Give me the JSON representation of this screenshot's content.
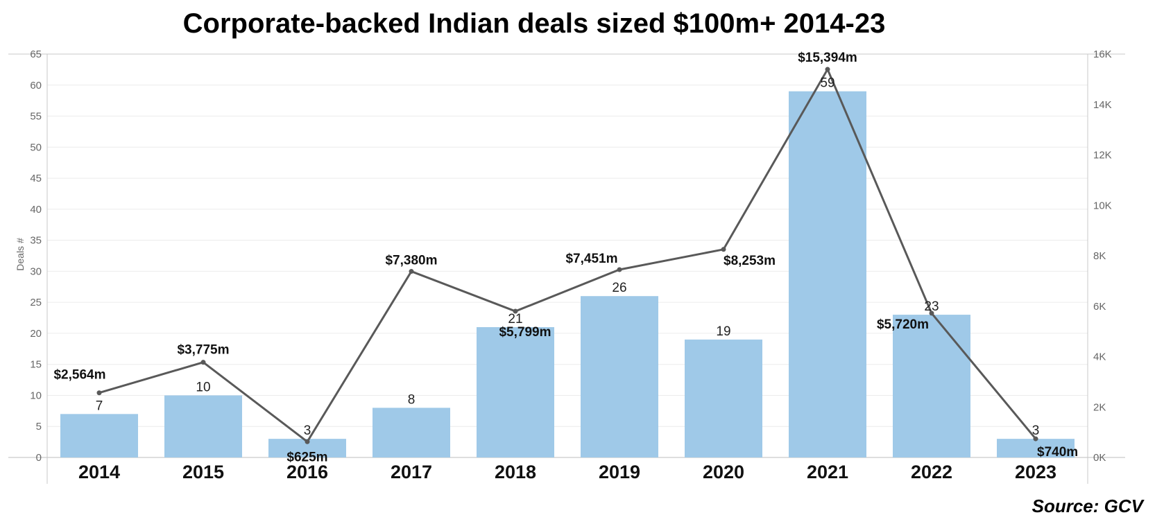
{
  "chart_data": {
    "type": "bar",
    "title": "Corporate-backed Indian deals sized $100m+ 2014-23",
    "ylabel": "Deals #",
    "categories": [
      "2014",
      "2015",
      "2016",
      "2017",
      "2018",
      "2019",
      "2020",
      "2021",
      "2022",
      "2023"
    ],
    "series": [
      {
        "type": "bar",
        "axis": "left",
        "values": [
          7,
          10,
          3,
          8,
          21,
          26,
          19,
          59,
          23,
          3
        ],
        "labels": [
          "7",
          "10",
          "3",
          "8",
          "21",
          "26",
          "19",
          "59",
          "23",
          "3"
        ],
        "color": "#9fc9e8"
      },
      {
        "type": "line",
        "axis": "right",
        "values": [
          2564,
          3775,
          625,
          7380,
          5799,
          7451,
          8253,
          15394,
          5720,
          740
        ],
        "labels": [
          "$2,564m",
          "$3,775m",
          "$625m",
          "$7,380m",
          "$5,799m",
          "$7,451m",
          "$8,253m",
          "$15,394m",
          "$5,720m",
          "$740m"
        ],
        "color": "#595959"
      }
    ],
    "y_left": {
      "lim": [
        0,
        65
      ],
      "ticks": [
        "0",
        "5",
        "10",
        "15",
        "20",
        "25",
        "30",
        "35",
        "40",
        "45",
        "50",
        "55",
        "60",
        "65"
      ]
    },
    "y_right": {
      "lim": [
        0,
        16000
      ],
      "ticks": [
        "0K",
        "2K",
        "4K",
        "6K",
        "8K",
        "10K",
        "12K",
        "14K",
        "16K"
      ]
    },
    "grid": true,
    "legend": "none",
    "source": "Source: GCV"
  }
}
